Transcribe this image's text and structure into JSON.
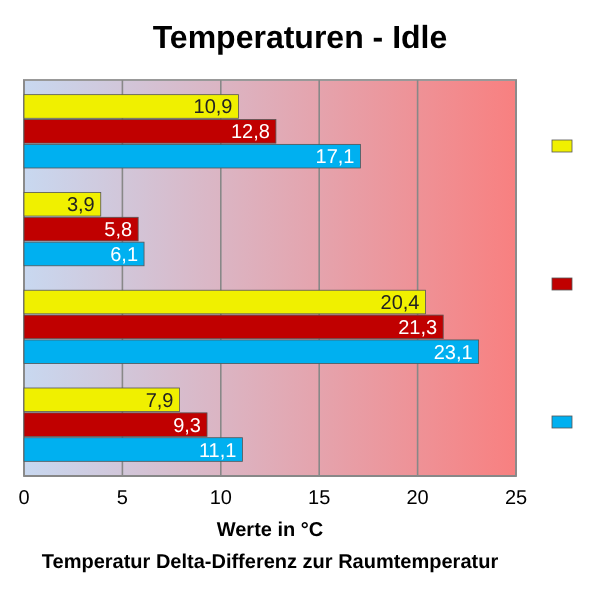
{
  "chart_data": {
    "type": "bar",
    "orientation": "horizontal",
    "title": "Temperaturen - Idle",
    "xlabel": "Werte in °C",
    "annotations": [
      "Temperatur Delta-Differenz zur Raumtemperatur"
    ],
    "categories": [
      null,
      null,
      null,
      null
    ],
    "series": [
      {
        "color": "#f0f000",
        "values": [
          10.9,
          3.9,
          20.4,
          7.9
        ],
        "value_labels": [
          "10,9",
          "3,9",
          "20,4",
          "7,9"
        ]
      },
      {
        "color": "#c00000",
        "values": [
          12.8,
          5.8,
          21.3,
          9.3
        ],
        "value_labels": [
          "12,8",
          "5,8",
          "21,3",
          "9,3"
        ]
      },
      {
        "color": "#00b0f0",
        "values": [
          17.1,
          6.1,
          23.1,
          11.1
        ],
        "value_labels": [
          "17,1",
          "6,1",
          "23,1",
          "11,1"
        ]
      }
    ],
    "xlim": [
      0,
      25
    ],
    "xticks": [
      0,
      5,
      10,
      15,
      20,
      25
    ],
    "grid": "x"
  }
}
